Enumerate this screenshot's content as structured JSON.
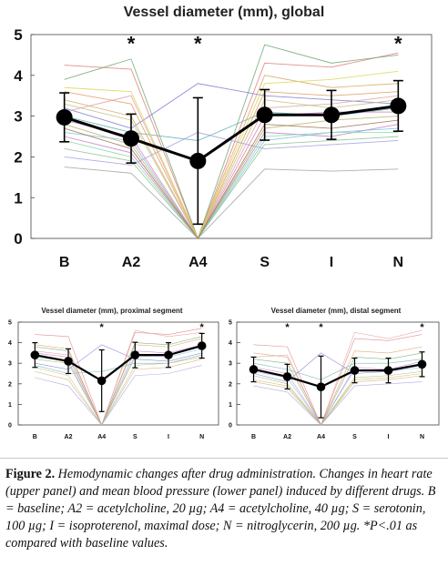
{
  "chart_data": [
    {
      "type": "line",
      "panel": "main",
      "title": "Vessel diameter (mm), global",
      "categories": [
        "B",
        "A2",
        "A4",
        "S",
        "I",
        "N"
      ],
      "yticks": [
        "0",
        "1",
        "2",
        "3",
        "4",
        "5"
      ],
      "ylim": [
        0,
        5
      ],
      "grid": false,
      "mean_series": {
        "values": [
          2.97,
          2.45,
          1.9,
          3.03,
          3.03,
          3.25
        ],
        "sd": [
          0.6,
          0.6,
          1.55,
          0.62,
          0.6,
          0.62
        ]
      },
      "significance_markers": [
        {
          "category": "A2",
          "label": "*"
        },
        {
          "category": "A4",
          "label": "*"
        },
        {
          "category": "N",
          "label": "*"
        }
      ],
      "individual_series": [
        {
          "color": "#e07a7a",
          "values": [
            4.25,
            4.15,
            0,
            4.3,
            4.2,
            4.55
          ]
        },
        {
          "color": "#6fa86f",
          "values": [
            3.9,
            4.4,
            0,
            4.75,
            4.3,
            4.5
          ]
        },
        {
          "color": "#7a7ad6",
          "values": [
            3.2,
            2.7,
            3.8,
            3.5,
            3.4,
            3.3
          ]
        },
        {
          "color": "#d6a86f",
          "values": [
            3.4,
            3.0,
            0,
            4.0,
            3.7,
            3.8
          ]
        },
        {
          "color": "#a0a0a0",
          "values": [
            1.75,
            1.6,
            0,
            1.7,
            1.65,
            1.7
          ]
        },
        {
          "color": "#c97bc9",
          "values": [
            2.5,
            2.1,
            0,
            2.6,
            2.5,
            2.8
          ]
        },
        {
          "color": "#5fb3b3",
          "values": [
            3.0,
            2.6,
            2.4,
            3.1,
            3.0,
            3.2
          ]
        },
        {
          "color": "#b3b35f",
          "values": [
            2.8,
            2.3,
            0,
            2.7,
            2.9,
            3.0
          ]
        },
        {
          "color": "#e09a5f",
          "values": [
            3.6,
            3.3,
            0,
            3.6,
            3.5,
            3.6
          ]
        },
        {
          "color": "#8fbf8f",
          "values": [
            2.2,
            1.9,
            0,
            2.3,
            2.4,
            2.5
          ]
        },
        {
          "color": "#9f9fdf",
          "values": [
            2.0,
            1.8,
            2.6,
            2.2,
            2.3,
            2.4
          ]
        },
        {
          "color": "#df9f9f",
          "values": [
            3.1,
            3.5,
            0,
            3.2,
            3.3,
            3.5
          ]
        },
        {
          "color": "#7fbfdf",
          "values": [
            2.6,
            2.4,
            0,
            2.4,
            2.6,
            2.7
          ]
        },
        {
          "color": "#bfbf7f",
          "values": [
            3.3,
            2.9,
            0,
            3.4,
            3.2,
            3.4
          ]
        },
        {
          "color": "#df7fbf",
          "values": [
            2.9,
            2.5,
            0,
            3.0,
            3.1,
            3.1
          ]
        },
        {
          "color": "#7fdf9f",
          "values": [
            2.4,
            2.0,
            0,
            2.5,
            2.6,
            2.6
          ]
        },
        {
          "color": "#d8d850",
          "values": [
            3.7,
            3.6,
            0,
            3.8,
            3.9,
            4.1
          ]
        },
        {
          "color": "#a07050",
          "values": [
            2.7,
            2.2,
            0,
            2.8,
            2.7,
            2.9
          ]
        }
      ]
    },
    {
      "type": "line",
      "panel": "proximal",
      "title": "Vessel diameter (mm), proximal segment",
      "categories": [
        "B",
        "A2",
        "A4",
        "S",
        "I",
        "N"
      ],
      "yticks": [
        "0",
        "1",
        "2",
        "3",
        "4",
        "5"
      ],
      "ylim": [
        0,
        5
      ],
      "grid": false,
      "mean_series": {
        "values": [
          3.4,
          3.1,
          2.15,
          3.4,
          3.4,
          3.85
        ],
        "sd": [
          0.6,
          0.6,
          1.5,
          0.62,
          0.6,
          0.6
        ]
      },
      "significance_markers": [
        {
          "category": "A4",
          "label": "*"
        },
        {
          "category": "N",
          "label": "*"
        }
      ],
      "individual_series": [
        {
          "color": "#e07a7a",
          "values": [
            4.4,
            4.3,
            0,
            4.5,
            4.4,
            4.7
          ]
        },
        {
          "color": "#6fa86f",
          "values": [
            3.8,
            3.6,
            0,
            4.0,
            3.9,
            4.3
          ]
        },
        {
          "color": "#7a7ad6",
          "values": [
            3.0,
            2.7,
            3.9,
            3.2,
            3.1,
            3.5
          ]
        },
        {
          "color": "#d6a86f",
          "values": [
            2.6,
            2.2,
            0,
            2.7,
            2.8,
            3.2
          ]
        },
        {
          "color": "#c97bc9",
          "values": [
            3.5,
            3.3,
            0,
            3.6,
            3.5,
            3.9
          ]
        },
        {
          "color": "#5fb3b3",
          "values": [
            2.9,
            2.5,
            2.6,
            3.0,
            3.0,
            3.4
          ]
        },
        {
          "color": "#b3b35f",
          "values": [
            3.2,
            3.0,
            0,
            3.3,
            3.4,
            3.8
          ]
        },
        {
          "color": "#e09a5f",
          "values": [
            3.9,
            3.7,
            0,
            3.9,
            3.8,
            4.2
          ]
        },
        {
          "color": "#9f9fdf",
          "values": [
            2.3,
            1.9,
            0,
            2.4,
            2.5,
            2.9
          ]
        },
        {
          "color": "#df9f9f",
          "values": [
            3.6,
            3.4,
            0,
            4.6,
            4.3,
            4.5
          ]
        },
        {
          "color": "#7fbfdf",
          "values": [
            3.3,
            3.1,
            0,
            3.4,
            3.3,
            3.7
          ]
        },
        {
          "color": "#bfbf7f",
          "values": [
            2.8,
            2.4,
            0,
            2.9,
            3.0,
            3.3
          ]
        }
      ]
    },
    {
      "type": "line",
      "panel": "distal",
      "title": "Vessel diameter (mm), distal segment",
      "categories": [
        "B",
        "A2",
        "A4",
        "S",
        "I",
        "N"
      ],
      "yticks": [
        "0",
        "1",
        "2",
        "3",
        "4",
        "5"
      ],
      "ylim": [
        0,
        5
      ],
      "grid": false,
      "mean_series": {
        "values": [
          2.7,
          2.35,
          1.85,
          2.65,
          2.65,
          2.95
        ],
        "sd": [
          0.6,
          0.6,
          1.5,
          0.6,
          0.6,
          0.6
        ]
      },
      "significance_markers": [
        {
          "category": "A2",
          "label": "*"
        },
        {
          "category": "A4",
          "label": "*"
        },
        {
          "category": "N",
          "label": "*"
        }
      ],
      "individual_series": [
        {
          "color": "#e07a7a",
          "values": [
            3.9,
            3.8,
            0,
            4.2,
            4.1,
            4.4
          ]
        },
        {
          "color": "#6fa86f",
          "values": [
            3.2,
            3.0,
            0,
            3.3,
            3.2,
            3.5
          ]
        },
        {
          "color": "#7a7ad6",
          "values": [
            2.5,
            2.1,
            3.5,
            2.5,
            2.6,
            2.9
          ]
        },
        {
          "color": "#d6a86f",
          "values": [
            2.1,
            1.8,
            0,
            2.1,
            2.2,
            2.4
          ]
        },
        {
          "color": "#c97bc9",
          "values": [
            2.8,
            2.5,
            0,
            2.8,
            2.7,
            3.1
          ]
        },
        {
          "color": "#5fb3b3",
          "values": [
            3.0,
            2.7,
            2.2,
            3.0,
            3.0,
            3.2
          ]
        },
        {
          "color": "#b3b35f",
          "values": [
            2.4,
            2.0,
            0,
            2.3,
            2.4,
            2.6
          ]
        },
        {
          "color": "#e09a5f",
          "values": [
            3.5,
            3.3,
            0,
            3.6,
            3.5,
            3.8
          ]
        },
        {
          "color": "#9f9fdf",
          "values": [
            1.9,
            1.6,
            0,
            1.9,
            2.0,
            2.1
          ]
        },
        {
          "color": "#df9f9f",
          "values": [
            3.3,
            3.4,
            0,
            4.5,
            4.2,
            4.6
          ]
        },
        {
          "color": "#7fbfdf",
          "values": [
            2.6,
            2.3,
            0,
            2.7,
            2.6,
            2.8
          ]
        },
        {
          "color": "#bfbf7f",
          "values": [
            2.2,
            1.9,
            0,
            2.2,
            2.3,
            2.5
          ]
        }
      ]
    }
  ],
  "caption": {
    "lead": "Figure 2.",
    "body": "Hemodynamic changes after drug administration. Changes in heart rate (upper panel) and mean blood pressure (lower panel) induced by different drugs. B = baseline; A2 = acetylcholine, 20 µg; A4 = acetylcholine, 40 µg; S = serotonin, 100 µg; I = isoproterenol, maximal dose; N = nitroglycerin, 200 µg. *P<.01 as compared with baseline values."
  }
}
